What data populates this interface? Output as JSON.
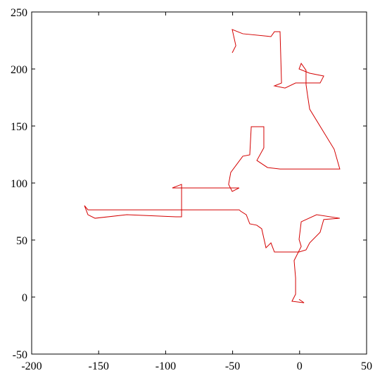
{
  "chart_data": {
    "type": "line",
    "series": [
      {
        "color": "#d40000",
        "x": [
          -0.4,
          3.3,
          -5.7,
          -3.0,
          -3.0,
          -4.1,
          1.2,
          -0.4,
          1.2,
          12.7,
          30.0,
          18.0,
          15.3,
          7.5,
          4.8,
          -0.4,
          -18.8,
          -21.4,
          -25.1,
          -28.3,
          -32.0,
          -37.2,
          -39.8,
          -44.0,
          -45.1,
          -158.0,
          -160.6,
          -158.0,
          -152.7,
          -129.0,
          -92.3,
          -88.1,
          -88.1,
          -95.0,
          -45.1,
          -50.3,
          -53.0,
          -51.4,
          -42.4,
          -37.2,
          -36.1,
          -26.7,
          -26.7,
          -31.9,
          -24.0,
          -14.6,
          30.0,
          25.8,
          7.5,
          5.9,
          4.8,
          4.8,
          1.2,
          -0.4,
          7.5,
          18.0,
          15.3,
          -3.0,
          -10.9,
          -18.8,
          -13.5,
          -14.6,
          -18.8,
          -21.4,
          -42.4,
          -50.3,
          -47.6,
          -50.3
        ],
        "values": [
          -2.0,
          -5.0,
          -3.7,
          2.5,
          16.7,
          32.0,
          44.4,
          50.6,
          66.0,
          72.2,
          69.1,
          68.0,
          56.8,
          47.5,
          41.4,
          39.5,
          39.5,
          47.5,
          43.2,
          59.9,
          63.0,
          64.2,
          72.2,
          75.3,
          76.5,
          76.5,
          80.2,
          72.2,
          69.1,
          72.2,
          70.4,
          70.4,
          98.8,
          95.7,
          95.7,
          92.6,
          98.8,
          109.3,
          123.5,
          124.7,
          149.4,
          149.4,
          130.9,
          119.8,
          113.6,
          112.3,
          112.3,
          129.6,
          164.8,
          177.2,
          186.4,
          198.8,
          204.9,
          200.0,
          196.3,
          193.8,
          187.7,
          187.7,
          183.3,
          185.2,
          187.7,
          232.7,
          232.7,
          228.4,
          230.9,
          234.6,
          220.4,
          214.2
        ]
      }
    ],
    "xlim": [
      -200,
      50
    ],
    "xticks": [
      -200,
      -150,
      -100,
      -50,
      0,
      50
    ],
    "ylim": [
      -50,
      250
    ],
    "yticks": [
      -50,
      0,
      50,
      100,
      150,
      200,
      250
    ]
  }
}
